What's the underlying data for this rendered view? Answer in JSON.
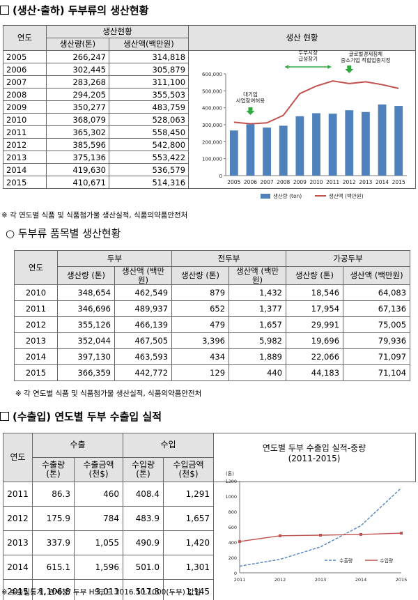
{
  "section1": {
    "title": "(생산·출하) 두부류의 생산현황",
    "table": {
      "h_year": "연도",
      "h_group": "생산현황",
      "h_qty": "생산량(톤)",
      "h_amt": "생산액(백만원)",
      "h_chart": "생산 현황",
      "rows": [
        {
          "year": "2005",
          "qty": "266,247",
          "amt": "314,818"
        },
        {
          "year": "2006",
          "qty": "302,445",
          "amt": "305,879"
        },
        {
          "year": "2007",
          "qty": "283,268",
          "amt": "311,100"
        },
        {
          "year": "2008",
          "qty": "294,205",
          "amt": "355,503"
        },
        {
          "year": "2009",
          "qty": "350,277",
          "amt": "483,759"
        },
        {
          "year": "2010",
          "qty": "368,079",
          "amt": "528,063"
        },
        {
          "year": "2011",
          "qty": "365,302",
          "amt": "558,450"
        },
        {
          "year": "2012",
          "qty": "385,596",
          "amt": "542,800"
        },
        {
          "year": "2013",
          "qty": "375,136",
          "amt": "553,422"
        },
        {
          "year": "2014",
          "qty": "419,630",
          "amt": "536,579"
        },
        {
          "year": "2015",
          "qty": "410,671",
          "amt": "514,316"
        }
      ]
    },
    "note": "※ 각 연도별 식품 및 식품첨가물 생산실적, 식품의약품안전처"
  },
  "section2": {
    "title": "○ 두부류 품목별 생산현황",
    "table": {
      "h_year": "연도",
      "groups": [
        "두부",
        "전두부",
        "가공두부"
      ],
      "h_qty": "생산량 (톤)",
      "h_amt": "생산액 (백만원)",
      "rows": [
        {
          "year": "2010",
          "c": [
            "348,654",
            "462,549",
            "879",
            "1,432",
            "18,546",
            "64,083"
          ]
        },
        {
          "year": "2011",
          "c": [
            "346,696",
            "489,937",
            "652",
            "1,377",
            "17,954",
            "67,136"
          ]
        },
        {
          "year": "2012",
          "c": [
            "355,126",
            "466,139",
            "479",
            "1,657",
            "29,991",
            "75,005"
          ]
        },
        {
          "year": "2013",
          "c": [
            "352,044",
            "467,505",
            "3,396",
            "5,982",
            "19,696",
            "79,936"
          ]
        },
        {
          "year": "2014",
          "c": [
            "397,130",
            "463,593",
            "434",
            "1,889",
            "22,066",
            "71,097"
          ]
        },
        {
          "year": "2015",
          "c": [
            "366,359",
            "442,772",
            "129",
            "440",
            "44,183",
            "71,104"
          ]
        }
      ]
    },
    "note": "※ 각 연도별 식품 및 식품첨가물 생산실적, 식품의약품안전처"
  },
  "section3": {
    "title": "(수출입) 연도별 두부 수출입 실적",
    "table": {
      "h_year": "연도",
      "h_export": "수출",
      "h_import": "수입",
      "h_ex_qty": "수출량 (톤)",
      "h_ex_amt": "수출금액 (천$)",
      "h_im_qty": "수입량 (톤)",
      "h_im_amt": "수입금액 (천$)",
      "rows": [
        {
          "year": "2011",
          "c": [
            "86.3",
            "460",
            "408.4",
            "1,291"
          ]
        },
        {
          "year": "2012",
          "c": [
            "175.9",
            "784",
            "483.9",
            "1,657"
          ]
        },
        {
          "year": "2013",
          "c": [
            "337.9",
            "1,055",
            "490.9",
            "1,420"
          ]
        },
        {
          "year": "2014",
          "c": [
            "615.1",
            "1,596",
            "501.0",
            "1,301"
          ]
        },
        {
          "year": "2015",
          "c": [
            "1,106.8",
            "3,013",
            "517.3",
            "1,145"
          ]
        }
      ]
    },
    "chart_title_1": "연도별 두부 수출입 실적-중량",
    "chart_title_2": "(2011-2015)",
    "note": "※ 수출입통계, 관세청/ 두부 HS코드 2016.10.1000(두부) 값임"
  },
  "chart_data": [
    {
      "type": "bar",
      "categories": [
        "2005",
        "2006",
        "2007",
        "2008",
        "2009",
        "2010",
        "2011",
        "2012",
        "2013",
        "2014",
        "2015"
      ],
      "series": [
        {
          "name": "생산량 (ton)",
          "kind": "bar",
          "color": "#4f81bd",
          "values": [
            266247,
            302445,
            283268,
            294205,
            350277,
            368079,
            365302,
            385596,
            375136,
            419630,
            410671
          ]
        },
        {
          "name": "생산액 (백만원)",
          "kind": "line",
          "color": "#c0504d",
          "values": [
            314818,
            305879,
            311100,
            355503,
            483759,
            528063,
            558450,
            542800,
            553422,
            536579,
            514316
          ]
        }
      ],
      "ylim": [
        0,
        600000
      ],
      "yticks": [
        "0",
        "100,000",
        "200,000",
        "300,000",
        "400,000",
        "500,000",
        "600,000"
      ],
      "annotations": [
        "대기업 사업참여허용",
        "두부시장 급성장기",
        "글로벌경제침체 중소기업 적합업종지정"
      ],
      "legend": "bottom"
    },
    {
      "type": "line",
      "title": "연도별 두부 수출입 실적-중량 (2011-2015)",
      "x": [
        "2011",
        "2012",
        "2013",
        "2014",
        "2015"
      ],
      "series": [
        {
          "name": "수출량",
          "color": "#4f81bd",
          "dashed": true,
          "values": [
            86.3,
            175.9,
            337.9,
            615.1,
            1106.8
          ]
        },
        {
          "name": "수입량",
          "color": "#c0504d",
          "dashed": false,
          "values": [
            408.4,
            483.9,
            490.9,
            501.0,
            517.3
          ]
        }
      ],
      "ylabel": "(톤)",
      "ylim": [
        0,
        1200
      ],
      "yticks": [
        "0",
        "200",
        "400",
        "600",
        "800",
        "1000",
        "1200"
      ],
      "legend": "bottom-right"
    }
  ]
}
